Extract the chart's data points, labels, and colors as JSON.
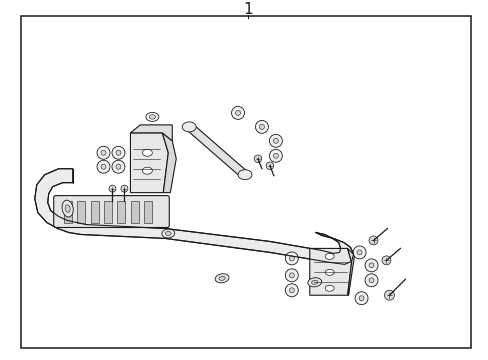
{
  "title": "1",
  "bg_color": "#ffffff",
  "line_color": "#1a1a1a",
  "fig_width": 4.89,
  "fig_height": 3.6,
  "dpi": 100
}
